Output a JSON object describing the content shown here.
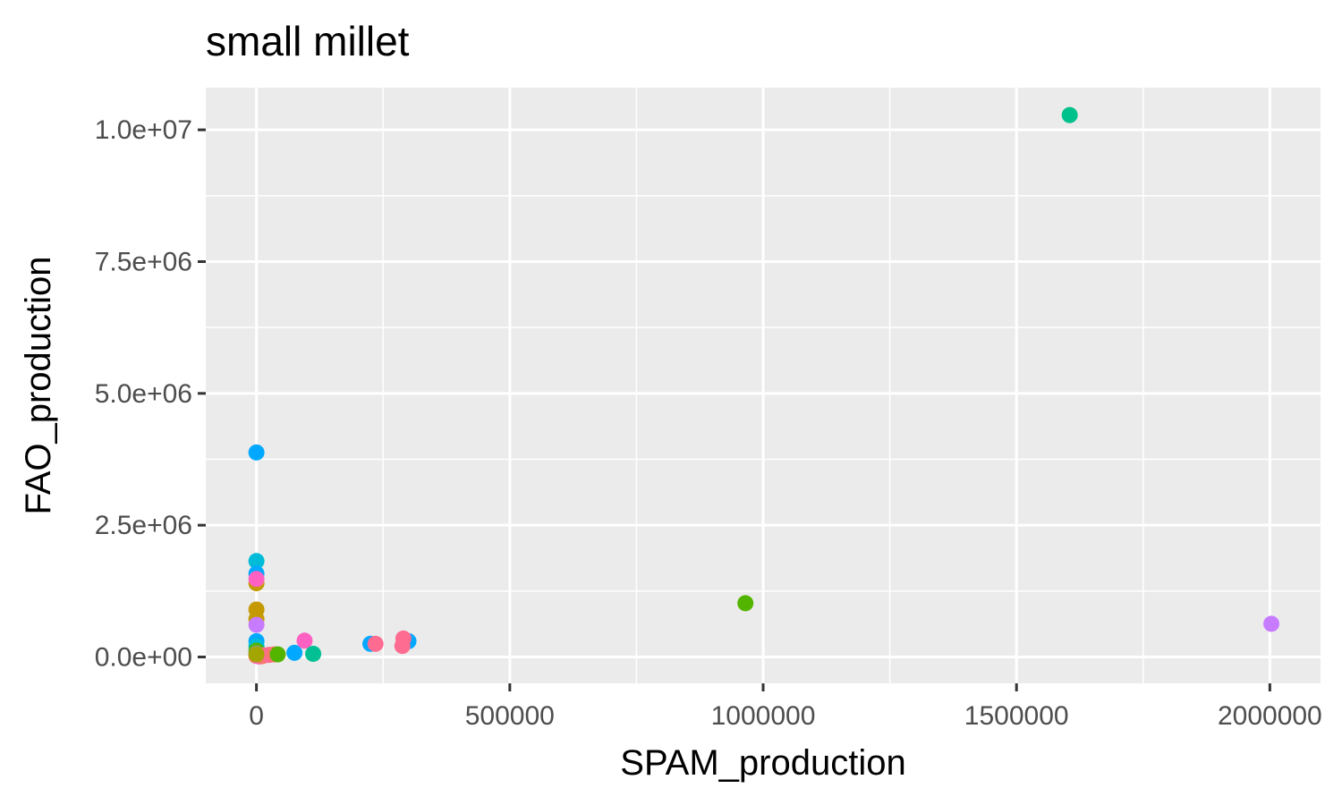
{
  "chart_data": {
    "type": "scatter",
    "title": "small millet",
    "xlabel": "SPAM_production",
    "ylabel": "FAO_production",
    "xlim": [
      -100000,
      2100000
    ],
    "ylim": [
      -500000,
      10800000
    ],
    "x_major_ticks": [
      0,
      500000,
      1000000,
      1500000,
      2000000
    ],
    "x_tick_labels": [
      "0",
      "500000",
      "1000000",
      "1500000",
      "2000000"
    ],
    "x_minor_ticks": [
      250000,
      750000,
      1250000,
      1750000
    ],
    "y_major_ticks": [
      0,
      2500000,
      5000000,
      7500000,
      10000000
    ],
    "y_tick_labels": [
      "0.0e+00",
      "2.5e+06",
      "5.0e+06",
      "7.5e+06",
      "1.0e+07"
    ],
    "y_minor_ticks": [
      1250000,
      3750000,
      6250000,
      8750000
    ],
    "grid": true,
    "legend": "none",
    "panel_background": "#EBEBEB",
    "points": [
      {
        "x": 1605000,
        "y": 10280000,
        "color": "#00C08B"
      },
      {
        "x": 965000,
        "y": 1020000,
        "color": "#53B400"
      },
      {
        "x": 2003000,
        "y": 630000,
        "color": "#C77CFF"
      },
      {
        "x": 0,
        "y": 3880000,
        "color": "#00A9FF"
      },
      {
        "x": 0,
        "y": 1820000,
        "color": "#00BCD8"
      },
      {
        "x": 0,
        "y": 1580000,
        "color": "#00A9FF"
      },
      {
        "x": 0,
        "y": 1400000,
        "color": "#C49A00"
      },
      {
        "x": 0,
        "y": 1480000,
        "color": "#FF61C3"
      },
      {
        "x": 0,
        "y": 900000,
        "color": "#C49A00"
      },
      {
        "x": 0,
        "y": 720000,
        "color": "#C49A00"
      },
      {
        "x": 0,
        "y": 610000,
        "color": "#C77CFF"
      },
      {
        "x": 0,
        "y": 300000,
        "color": "#00A9FF"
      },
      {
        "x": 0,
        "y": 200000,
        "color": "#00BCD8"
      },
      {
        "x": 0,
        "y": 120000,
        "color": "#53B400"
      },
      {
        "x": 0,
        "y": 60000,
        "color": "#A58AFF"
      },
      {
        "x": 0,
        "y": 20000,
        "color": "#F8766D"
      },
      {
        "x": 5000,
        "y": 10000,
        "color": "#FB61D7"
      },
      {
        "x": 10000,
        "y": 15000,
        "color": "#F8766D"
      },
      {
        "x": 15000,
        "y": 30000,
        "color": "#F8766D"
      },
      {
        "x": 25000,
        "y": 40000,
        "color": "#FF6C91"
      },
      {
        "x": 35000,
        "y": 50000,
        "color": "#F8766D"
      },
      {
        "x": 42000,
        "y": 50000,
        "color": "#53B400"
      },
      {
        "x": 75000,
        "y": 80000,
        "color": "#00A9FF"
      },
      {
        "x": 95000,
        "y": 310000,
        "color": "#FF61C3"
      },
      {
        "x": 112000,
        "y": 60000,
        "color": "#00C094"
      },
      {
        "x": 225000,
        "y": 250000,
        "color": "#00A9FF"
      },
      {
        "x": 235000,
        "y": 250000,
        "color": "#FF6C91"
      },
      {
        "x": 300000,
        "y": 300000,
        "color": "#00A9FF"
      },
      {
        "x": 290000,
        "y": 350000,
        "color": "#FF6C91"
      },
      {
        "x": 288000,
        "y": 210000,
        "color": "#FF6C91"
      },
      {
        "x": 0,
        "y": 50000,
        "color": "#A3A500"
      }
    ]
  }
}
